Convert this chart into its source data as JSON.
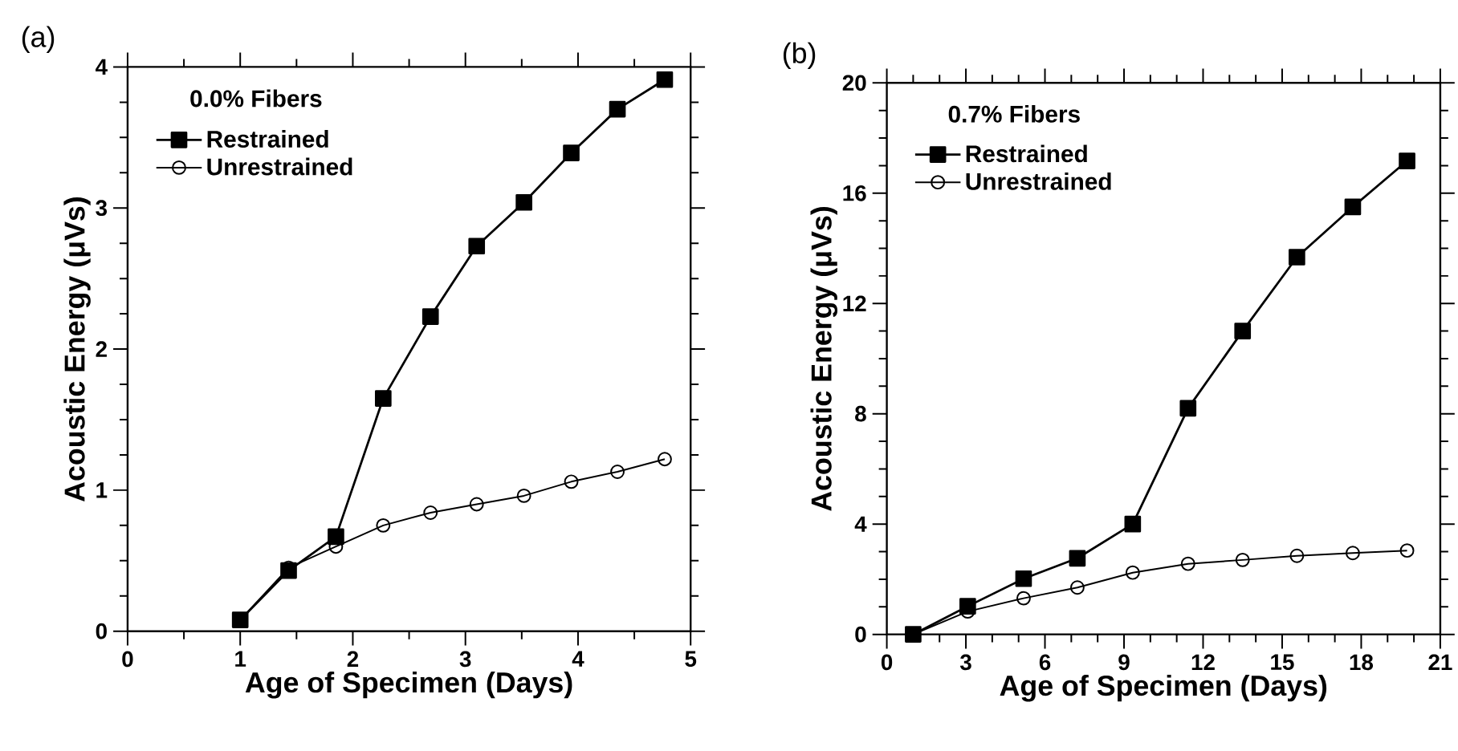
{
  "chart_data": [
    {
      "type": "line",
      "xlabel": "Age of Specimen (Days)",
      "ylabel": "Acoustic Energy (μVs)",
      "legend_title": "0.0% Fibers",
      "legend": "top left",
      "annotations": [
        "(a)"
      ],
      "xlim": [
        0,
        5
      ],
      "xticks": [
        0,
        1,
        2,
        3,
        4,
        5
      ],
      "ylim": [
        0,
        4
      ],
      "yticks": [
        0,
        1,
        2,
        3,
        4
      ],
      "grid": false,
      "x": [
        1.0,
        1.43,
        1.85,
        2.27,
        2.69,
        3.1,
        3.52,
        3.94,
        4.35,
        4.77
      ],
      "series": [
        {
          "name": "Restrained",
          "color": "#000000",
          "marker": "square",
          "values": [
            0.08,
            0.43,
            0.67,
            1.65,
            2.23,
            2.73,
            3.04,
            3.39,
            3.7,
            3.91
          ]
        },
        {
          "name": "Unrestrained",
          "color": "#000000",
          "marker": "circle",
          "values": [
            0.08,
            0.45,
            0.6,
            0.75,
            0.84,
            0.9,
            0.96,
            1.06,
            1.13,
            1.22
          ]
        }
      ]
    },
    {
      "type": "line",
      "xlabel": "Age of Specimen (Days)",
      "ylabel": "Acoustic Energy (μVs)",
      "legend_title": "0.7% Fibers",
      "legend": "top left",
      "annotations": [
        "(b)"
      ],
      "xlim": [
        0,
        21
      ],
      "xticks": [
        0,
        3,
        6,
        9,
        12,
        15,
        18,
        21
      ],
      "ylim": [
        0,
        20
      ],
      "yticks": [
        0,
        4,
        8,
        12,
        16,
        20
      ],
      "grid": false,
      "x": [
        1.0,
        3.07,
        5.19,
        7.23,
        9.33,
        11.43,
        13.5,
        15.56,
        17.68,
        19.74
      ],
      "series": [
        {
          "name": "Restrained",
          "color": "#000000",
          "marker": "square",
          "values": [
            0,
            1.02,
            2.02,
            2.76,
            4.0,
            8.2,
            11.0,
            13.68,
            15.5,
            17.17
          ]
        },
        {
          "name": "Unrestrained",
          "color": "#000000",
          "marker": "circle",
          "values": [
            0,
            0.83,
            1.31,
            1.7,
            2.24,
            2.56,
            2.7,
            2.85,
            2.95,
            3.04
          ]
        }
      ]
    }
  ]
}
